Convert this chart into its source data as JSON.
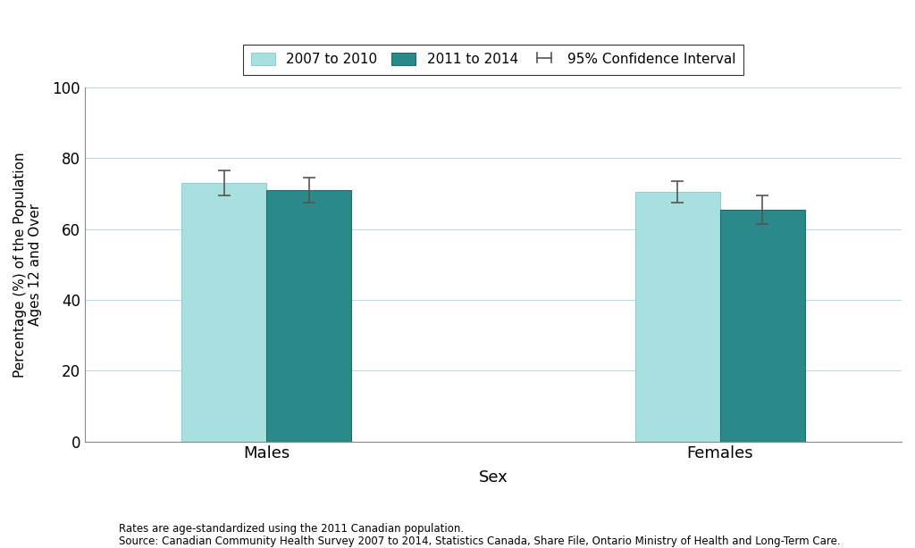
{
  "categories": [
    "Males",
    "Females"
  ],
  "bar_values_2007": [
    73.0,
    70.5
  ],
  "bar_values_2011": [
    71.0,
    65.5
  ],
  "ci_2007_upper": [
    76.5,
    73.5
  ],
  "ci_2007_lower": [
    69.5,
    67.5
  ],
  "ci_2011_upper": [
    74.5,
    69.5
  ],
  "ci_2011_lower": [
    67.5,
    61.5
  ],
  "color_2007": "#a8e0df",
  "color_2011": "#2a8a8a",
  "bar_width": 0.28,
  "group_centers": [
    0.25,
    0.75
  ],
  "x_lim": [
    0.0,
    1.0
  ],
  "ylim": [
    0,
    100
  ],
  "yticks": [
    0,
    20,
    40,
    60,
    80,
    100
  ],
  "xlabel": "Sex",
  "ylabel": "Percentage (%) of the Population\nAges 12 and Over",
  "legend_labels": [
    "2007 to 2010",
    "2011 to 2014",
    "95% Confidence Interval"
  ],
  "footnote_line1": "Rates are age-standardized using the 2011 Canadian population.",
  "footnote_line2": "Source: Canadian Community Health Survey 2007 to 2014, Statistics Canada, Share File, Ontario Ministry of Health and Long-Term Care.",
  "background_color": "#ffffff",
  "grid_color": "#c0d8e0",
  "axis_color": "#888888",
  "error_bar_color": "#555555",
  "xlabel_fontsize": 13,
  "ylabel_fontsize": 11,
  "tick_fontsize": 12,
  "legend_fontsize": 11,
  "footnote_fontsize": 8.5
}
